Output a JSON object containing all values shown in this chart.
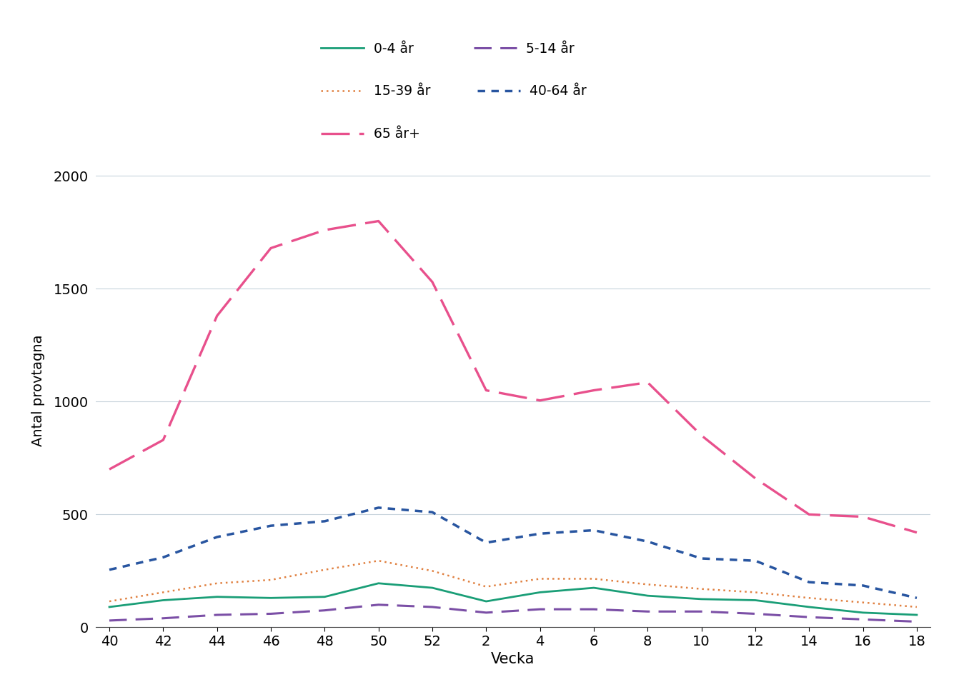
{
  "x_labels": [
    40,
    42,
    44,
    46,
    48,
    50,
    52,
    2,
    4,
    6,
    8,
    10,
    12,
    14,
    16,
    18
  ],
  "x_positions": [
    0,
    2,
    4,
    6,
    8,
    10,
    12,
    14,
    16,
    18,
    20,
    22,
    24,
    26,
    28,
    30
  ],
  "series_order": [
    "0-4 år",
    "5-14 år",
    "15-39 år",
    "40-64 år",
    "65 år+"
  ],
  "series": {
    "0-4 år": {
      "color": "#1a9e77",
      "linewidth": 2.0,
      "values": [
        90,
        120,
        135,
        130,
        135,
        195,
        175,
        115,
        155,
        175,
        140,
        125,
        120,
        90,
        65,
        55
      ]
    },
    "5-14 år": {
      "color": "#7b4fa6",
      "linewidth": 2.2,
      "values": [
        30,
        40,
        55,
        60,
        75,
        100,
        90,
        65,
        80,
        80,
        70,
        70,
        60,
        45,
        35,
        25
      ]
    },
    "15-39 år": {
      "color": "#e08040",
      "linewidth": 1.8,
      "values": [
        115,
        155,
        195,
        210,
        255,
        295,
        250,
        180,
        215,
        215,
        190,
        170,
        155,
        130,
        110,
        90
      ]
    },
    "40-64 år": {
      "color": "#2855a0",
      "linewidth": 2.5,
      "values": [
        255,
        310,
        400,
        450,
        470,
        530,
        510,
        375,
        415,
        430,
        380,
        305,
        295,
        200,
        185,
        130
      ]
    },
    "65 år+": {
      "color": "#e8508c",
      "linewidth": 2.4,
      "values": [
        700,
        830,
        1380,
        1680,
        1760,
        1800,
        1530,
        1050,
        1005,
        1050,
        1085,
        850,
        660,
        500,
        490,
        420
      ]
    }
  },
  "ylabel": "Antal provtagna",
  "xlabel": "Vecka",
  "ylim": [
    0,
    2100
  ],
  "yticks": [
    0,
    500,
    1000,
    1500,
    2000
  ],
  "background_color": "#ffffff",
  "grid_color": "#c8d4dc"
}
